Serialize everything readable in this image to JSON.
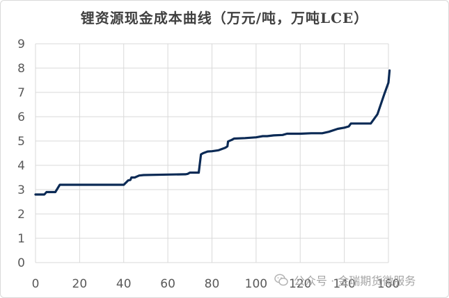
{
  "chart_data": {
    "type": "line",
    "title": "锂资源现金成本曲线（万元/吨，万吨LCE）",
    "xlim": [
      0,
      160
    ],
    "ylim": [
      0,
      9
    ],
    "xticks": [
      0,
      20,
      40,
      60,
      80,
      100,
      120,
      140,
      160
    ],
    "yticks": [
      0,
      1,
      2,
      3,
      4,
      5,
      6,
      7,
      8,
      9
    ],
    "grid": true,
    "legend": "none",
    "series": [
      {
        "color": "#0b2a55",
        "points": [
          [
            0,
            2.8
          ],
          [
            4,
            2.8
          ],
          [
            5,
            2.9
          ],
          [
            9,
            2.9
          ],
          [
            11,
            3.2
          ],
          [
            18,
            3.2
          ],
          [
            25,
            3.2
          ],
          [
            40,
            3.2
          ],
          [
            42,
            3.38
          ],
          [
            43,
            3.4
          ],
          [
            43.5,
            3.5
          ],
          [
            45,
            3.5
          ],
          [
            47,
            3.58
          ],
          [
            49,
            3.6
          ],
          [
            60,
            3.62
          ],
          [
            68,
            3.63
          ],
          [
            69,
            3.65
          ],
          [
            70,
            3.7
          ],
          [
            74,
            3.7
          ],
          [
            75,
            4.45
          ],
          [
            76,
            4.5
          ],
          [
            78,
            4.57
          ],
          [
            80,
            4.58
          ],
          [
            83,
            4.62
          ],
          [
            86,
            4.72
          ],
          [
            87,
            4.78
          ],
          [
            87.3,
            4.98
          ],
          [
            89,
            5.05
          ],
          [
            90,
            5.1
          ],
          [
            95,
            5.12
          ],
          [
            100,
            5.15
          ],
          [
            103,
            5.2
          ],
          [
            105,
            5.2
          ],
          [
            108,
            5.23
          ],
          [
            112,
            5.25
          ],
          [
            114,
            5.3
          ],
          [
            120,
            5.3
          ],
          [
            125,
            5.32
          ],
          [
            130,
            5.32
          ],
          [
            133,
            5.38
          ],
          [
            137,
            5.5
          ],
          [
            140,
            5.55
          ],
          [
            142,
            5.6
          ],
          [
            143,
            5.72
          ],
          [
            147,
            5.72
          ],
          [
            152,
            5.72
          ],
          [
            155,
            6.1
          ],
          [
            158,
            6.9
          ],
          [
            160,
            7.4
          ],
          [
            160.5,
            7.9
          ]
        ]
      }
    ]
  },
  "watermark": {
    "text": "公众号 · 金瑞期货微服务",
    "icon": "wechat-icon"
  }
}
